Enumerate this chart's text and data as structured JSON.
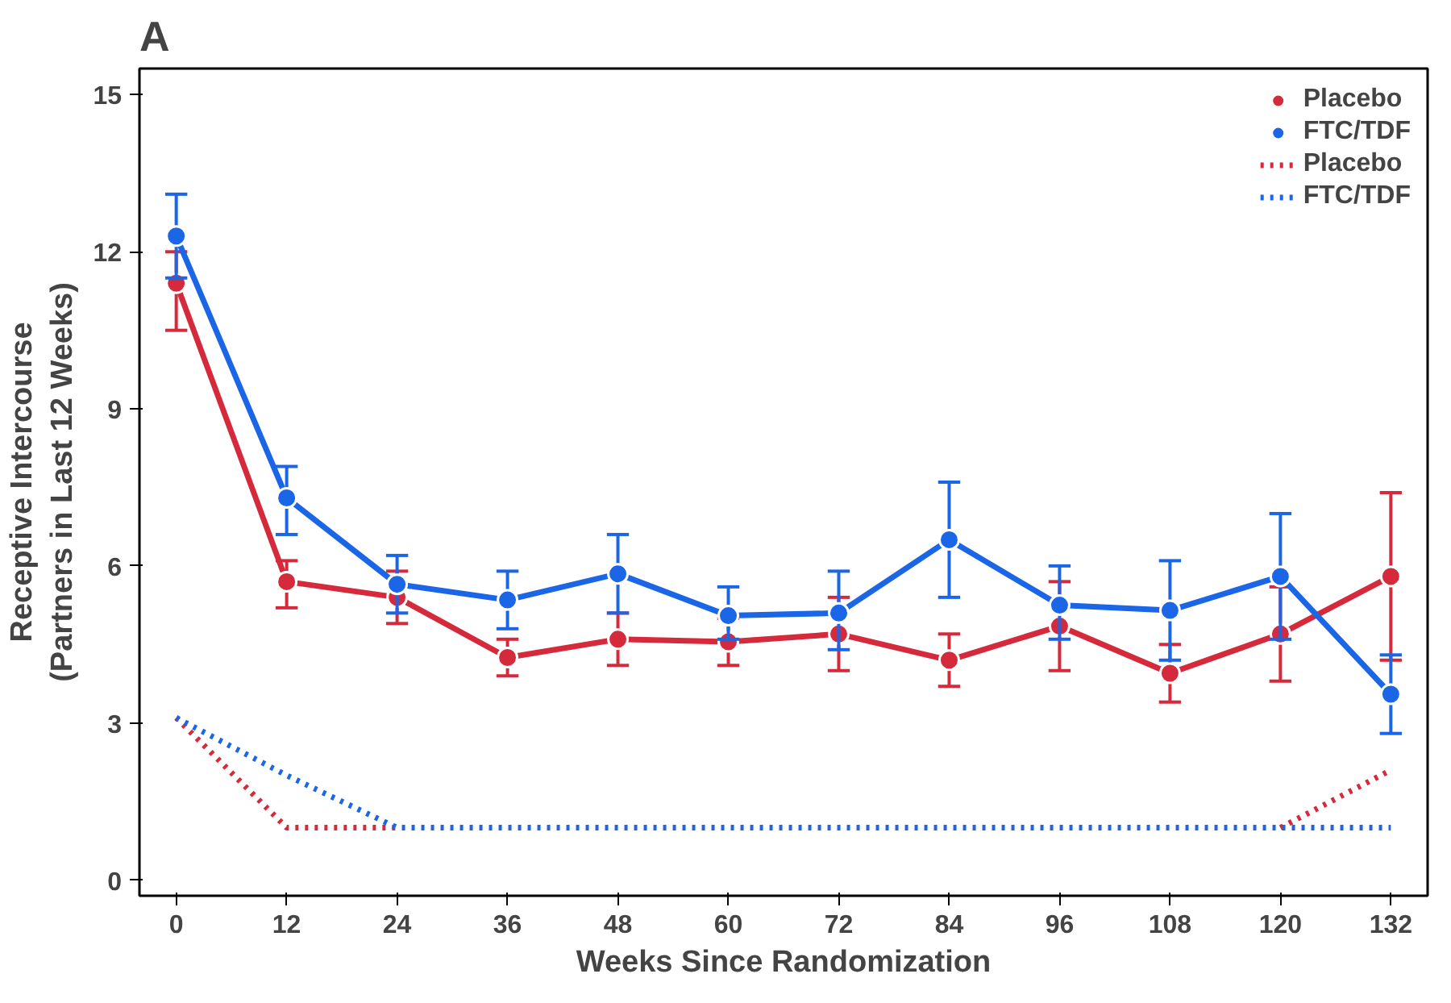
{
  "chart_data": {
    "type": "line",
    "title": "A",
    "xlabel": "Weeks Since Randomization",
    "ylabel": "Receptive Intercourse\n(Partners in Last 12 Weeks)",
    "x": [
      0,
      12,
      24,
      36,
      48,
      60,
      72,
      84,
      96,
      108,
      120,
      132
    ],
    "xlim": [
      -4,
      136
    ],
    "xticks": [
      0,
      12,
      24,
      36,
      48,
      60,
      72,
      84,
      96,
      108,
      120,
      132
    ],
    "ylim": [
      -0.3,
      15.5
    ],
    "yticks": [
      0,
      3,
      6,
      9,
      12,
      15
    ],
    "grid": false,
    "legend": "top right",
    "series": [
      {
        "name": "Placebo",
        "color": "#d42a3c",
        "marker": "circle",
        "line_style": "solid",
        "values": [
          11.4,
          5.7,
          5.4,
          4.25,
          4.6,
          4.55,
          4.7,
          4.2,
          4.85,
          3.95,
          4.7,
          5.8
        ],
        "errors": [
          [
            10.5,
            12.0
          ],
          [
            5.2,
            6.1
          ],
          [
            4.9,
            5.9
          ],
          [
            3.9,
            4.6
          ],
          [
            4.1,
            5.1
          ],
          [
            4.1,
            5.0
          ],
          [
            4.0,
            5.4
          ],
          [
            3.7,
            4.7
          ],
          [
            4.0,
            5.7
          ],
          [
            3.4,
            4.5
          ],
          [
            3.8,
            5.6
          ],
          [
            4.2,
            7.4
          ]
        ]
      },
      {
        "name": "FTC/TDF",
        "color": "#1a66e6",
        "marker": "circle",
        "line_style": "solid",
        "values": [
          12.3,
          7.3,
          5.65,
          5.35,
          5.85,
          5.05,
          5.1,
          6.5,
          5.25,
          5.15,
          5.8,
          3.55
        ],
        "errors": [
          [
            11.5,
            13.1
          ],
          [
            6.6,
            7.9
          ],
          [
            5.1,
            6.2
          ],
          [
            4.8,
            5.9
          ],
          [
            5.1,
            6.6
          ],
          [
            4.6,
            5.6
          ],
          [
            4.4,
            5.9
          ],
          [
            5.4,
            7.6
          ],
          [
            4.6,
            6.0
          ],
          [
            4.2,
            6.1
          ],
          [
            4.6,
            7.0
          ],
          [
            2.8,
            4.3
          ]
        ]
      },
      {
        "name": "Placebo",
        "color": "#d42a3c",
        "marker": "none",
        "line_style": "dotted",
        "values": [
          3.1,
          1,
          1,
          null,
          null,
          null,
          null,
          null,
          null,
          null,
          1,
          2.1
        ]
      },
      {
        "name": "FTC/TDF",
        "color": "#1a66e6",
        "marker": "none",
        "line_style": "dotted",
        "values": [
          3.1,
          2.0,
          1,
          1,
          1,
          1,
          1,
          1,
          1,
          1,
          1,
          1
        ]
      }
    ]
  }
}
